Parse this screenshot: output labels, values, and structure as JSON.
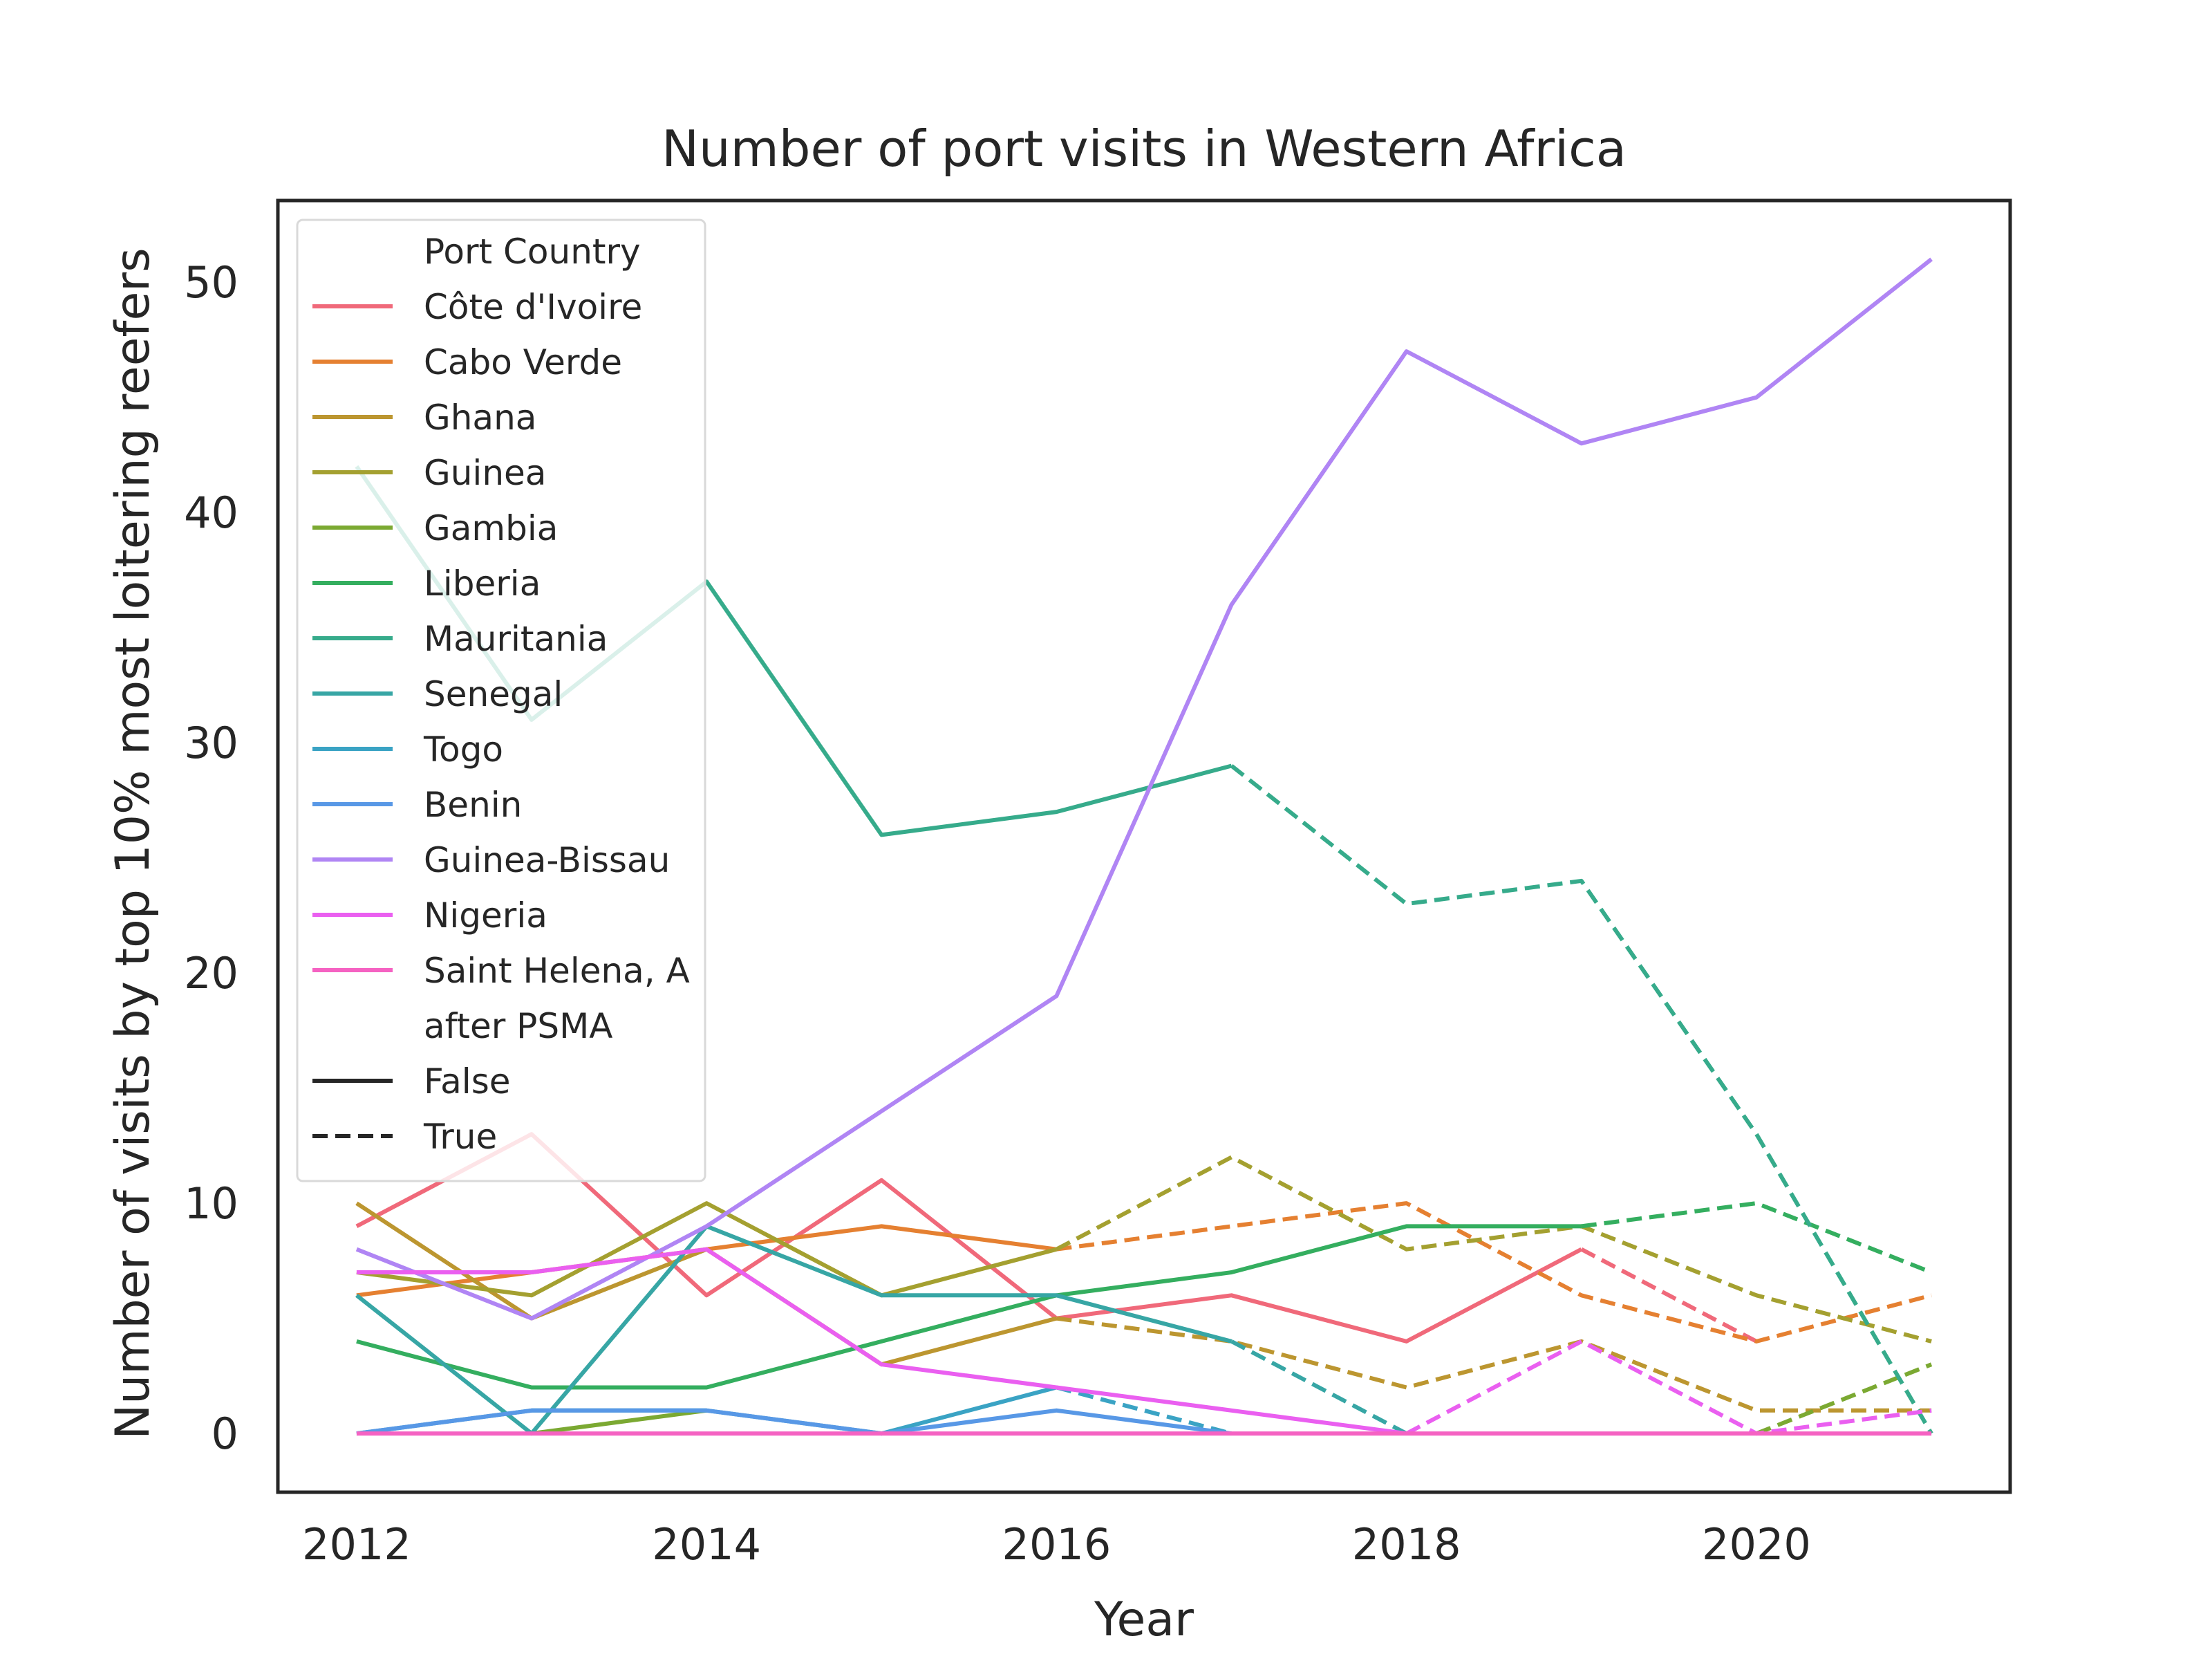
{
  "chart_data": {
    "type": "line",
    "title": "Number of port visits in Western Africa",
    "xlabel": "Year",
    "ylabel": "Number of visits by top 10% most loitering reefers",
    "xlim": [
      2011.55,
      2021.45
    ],
    "ylim": [
      -2.55,
      53.55
    ],
    "x_ticks": [
      "2012",
      "2014",
      "2016",
      "2018",
      "2020"
    ],
    "y_ticks": [
      "0",
      "10",
      "20",
      "30",
      "40",
      "50"
    ],
    "grid": false,
    "legend": {
      "position": "top-left",
      "hue_title": "Port Country",
      "style_title": "after PSMA",
      "style_entries": [
        {
          "label": "False",
          "dash": "solid"
        },
        {
          "label": "True",
          "dash": "dashed"
        }
      ]
    },
    "series": [
      {
        "name": "Côte d'Ivoire",
        "color": "#f0697a",
        "before": {
          "x": [
            2012,
            2013,
            2014,
            2015,
            2016,
            2017,
            2018,
            2019
          ],
          "y": [
            9,
            13,
            6,
            11,
            5,
            6,
            4,
            8
          ]
        },
        "after": {
          "x": [
            2019,
            2020
          ],
          "y": [
            8,
            4
          ]
        }
      },
      {
        "name": "Cabo Verde",
        "color": "#e58031",
        "before": {
          "x": [
            2012,
            2013,
            2014,
            2015,
            2016
          ],
          "y": [
            6,
            7,
            8,
            9,
            8
          ]
        },
        "after": {
          "x": [
            2016,
            2017,
            2018,
            2019,
            2020,
            2021
          ],
          "y": [
            8,
            9,
            10,
            6,
            4,
            6
          ]
        }
      },
      {
        "name": "Ghana",
        "color": "#bc9630",
        "before": {
          "x": [
            2012,
            2013,
            2014,
            2015,
            2016
          ],
          "y": [
            10,
            5,
            8,
            3,
            5
          ]
        },
        "after": {
          "x": [
            2016,
            2017,
            2018,
            2019,
            2020,
            2021
          ],
          "y": [
            5,
            4,
            2,
            4,
            1,
            1
          ]
        }
      },
      {
        "name": "Guinea",
        "color": "#a4a030",
        "before": {
          "x": [
            2012,
            2013,
            2014,
            2015,
            2016
          ],
          "y": [
            7,
            6,
            10,
            6,
            8
          ]
        },
        "after": {
          "x": [
            2016,
            2017,
            2018,
            2019,
            2020,
            2021
          ],
          "y": [
            8,
            12,
            8,
            9,
            6,
            4
          ]
        }
      },
      {
        "name": "Gambia",
        "color": "#7ba932",
        "before": {
          "x": [
            2013,
            2014
          ],
          "y": [
            0,
            1
          ]
        },
        "after": {
          "x": [
            2020,
            2021
          ],
          "y": [
            0,
            3
          ]
        }
      },
      {
        "name": "Liberia",
        "color": "#34ae5f",
        "before": {
          "x": [
            2012,
            2013,
            2014,
            2015,
            2016,
            2017,
            2018,
            2019
          ],
          "y": [
            4,
            2,
            2,
            4,
            6,
            7,
            9,
            9
          ]
        },
        "after": {
          "x": [
            2019,
            2020,
            2021
          ],
          "y": [
            9,
            10,
            7
          ]
        }
      },
      {
        "name": "Mauritania",
        "color": "#36ab8b",
        "before": {
          "x": [
            2012,
            2013,
            2014,
            2015,
            2016,
            2017
          ],
          "y": [
            42,
            31,
            37,
            26,
            27,
            29
          ]
        },
        "after": {
          "x": [
            2017,
            2018,
            2019,
            2020,
            2021
          ],
          "y": [
            29,
            23,
            24,
            13,
            0
          ]
        }
      },
      {
        "name": "Senegal",
        "color": "#37a6a5",
        "before": {
          "x": [
            2012,
            2013,
            2014,
            2015,
            2016,
            2017
          ],
          "y": [
            6,
            0,
            9,
            6,
            6,
            4
          ]
        },
        "after": {
          "x": [
            2017,
            2018
          ],
          "y": [
            4,
            0
          ]
        }
      },
      {
        "name": "Togo",
        "color": "#3aa3c4",
        "before": {
          "x": [
            2012,
            2013,
            2014,
            2015,
            2016
          ],
          "y": [
            0,
            1,
            1,
            0,
            2
          ]
        },
        "after": {
          "x": [
            2016,
            2017
          ],
          "y": [
            2,
            0
          ]
        }
      },
      {
        "name": "Benin",
        "color": "#5898e6",
        "before": {
          "x": [
            2012,
            2013,
            2014,
            2015,
            2016,
            2017
          ],
          "y": [
            0,
            1,
            1,
            0,
            1,
            0
          ]
        },
        "after": {
          "x": [],
          "y": []
        }
      },
      {
        "name": "Guinea-Bissau",
        "color": "#b085f4",
        "before": {
          "x": [
            2012,
            2013,
            2014,
            2015,
            2016,
            2017,
            2018,
            2019,
            2020,
            2021
          ],
          "y": [
            8,
            5,
            9,
            14,
            19,
            36,
            47,
            43,
            45,
            51
          ]
        },
        "after": {
          "x": [],
          "y": []
        }
      },
      {
        "name": "Nigeria",
        "color": "#ea5ff0",
        "before": {
          "x": [
            2012,
            2013,
            2014,
            2015,
            2016,
            2017,
            2018
          ],
          "y": [
            7,
            7,
            8,
            3,
            2,
            1,
            0
          ]
        },
        "after": {
          "x": [
            2018,
            2019,
            2020,
            2021
          ],
          "y": [
            0,
            4,
            0,
            1
          ]
        }
      },
      {
        "name": "Saint Helena, A",
        "color": "#f562c2",
        "before": {
          "x": [
            2012,
            2013,
            2014,
            2015,
            2016,
            2017,
            2018,
            2019,
            2020,
            2021
          ],
          "y": [
            0,
            0,
            0,
            0,
            0,
            0,
            0,
            0,
            0,
            0
          ]
        },
        "after": {
          "x": [],
          "y": []
        }
      }
    ]
  }
}
